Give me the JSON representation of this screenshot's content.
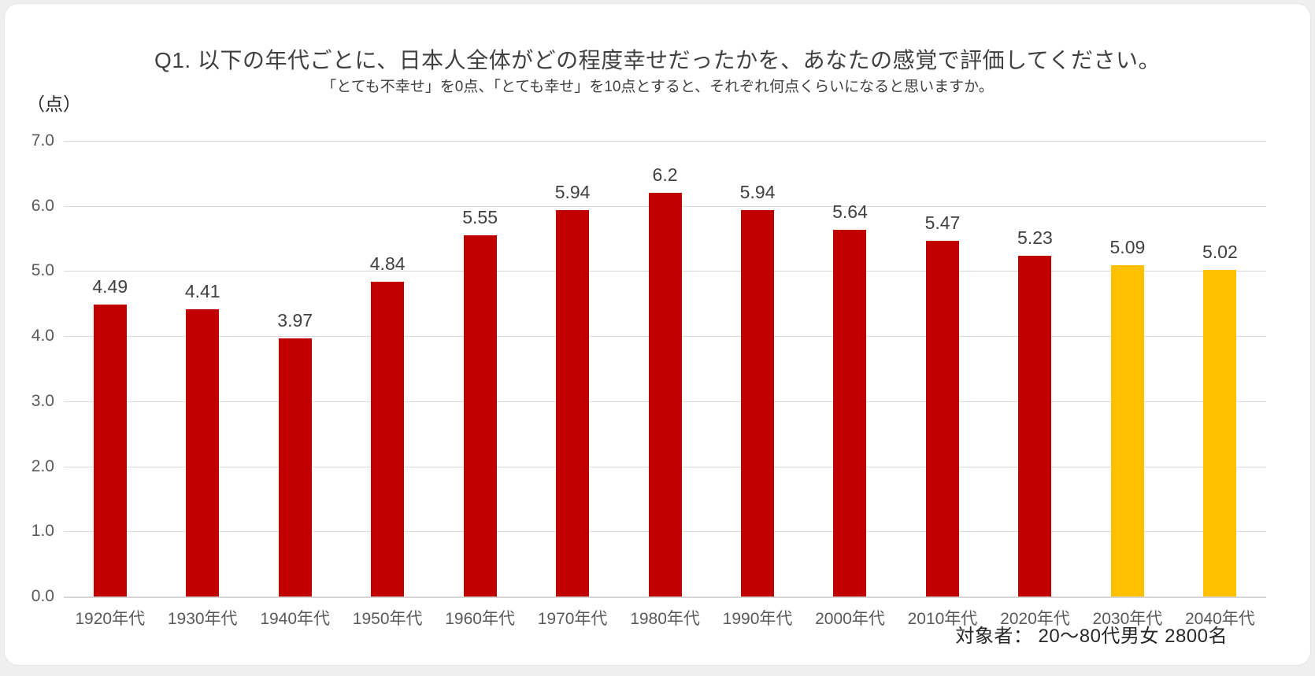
{
  "page": {
    "unit_label": "（点）",
    "footer_note": "対象者： 20～80代男女 2800名"
  },
  "chart_data": {
    "type": "bar",
    "title": "Q1. 以下の年代ごとに、日本人全体がどの程度幸せだったかを、あなたの感覚で評価してください。",
    "subtitle": "「とても不幸せ」を0点、「とても幸せ」を10点とすると、それぞれ何点くらいになると思いますか。",
    "categories": [
      "1920年代",
      "1930年代",
      "1940年代",
      "1950年代",
      "1960年代",
      "1970年代",
      "1980年代",
      "1990年代",
      "2000年代",
      "2010年代",
      "2020年代",
      "2030年代",
      "2040年代"
    ],
    "values": [
      4.49,
      4.41,
      3.97,
      4.84,
      5.55,
      5.94,
      6.2,
      5.94,
      5.64,
      5.47,
      5.23,
      5.09,
      5.02
    ],
    "value_labels": [
      "4.49",
      "4.41",
      "3.97",
      "4.84",
      "5.55",
      "5.94",
      "6.2",
      "5.94",
      "5.64",
      "5.47",
      "5.23",
      "5.09",
      "5.02"
    ],
    "bar_colors": [
      "#C00000",
      "#C00000",
      "#C00000",
      "#C00000",
      "#C00000",
      "#C00000",
      "#C00000",
      "#C00000",
      "#C00000",
      "#C00000",
      "#C00000",
      "#FFC000",
      "#FFC000"
    ],
    "series_legend": {
      "past_decades_color": "#C00000",
      "future_decades_color": "#FFC000"
    },
    "ylabel": "（点）",
    "ylim": [
      0,
      7
    ],
    "yticks": [
      "0.0",
      "1.0",
      "2.0",
      "3.0",
      "4.0",
      "5.0",
      "6.0",
      "7.0"
    ],
    "grid": true,
    "gridline_color": "#D9D9D9",
    "legend_position": "none"
  }
}
